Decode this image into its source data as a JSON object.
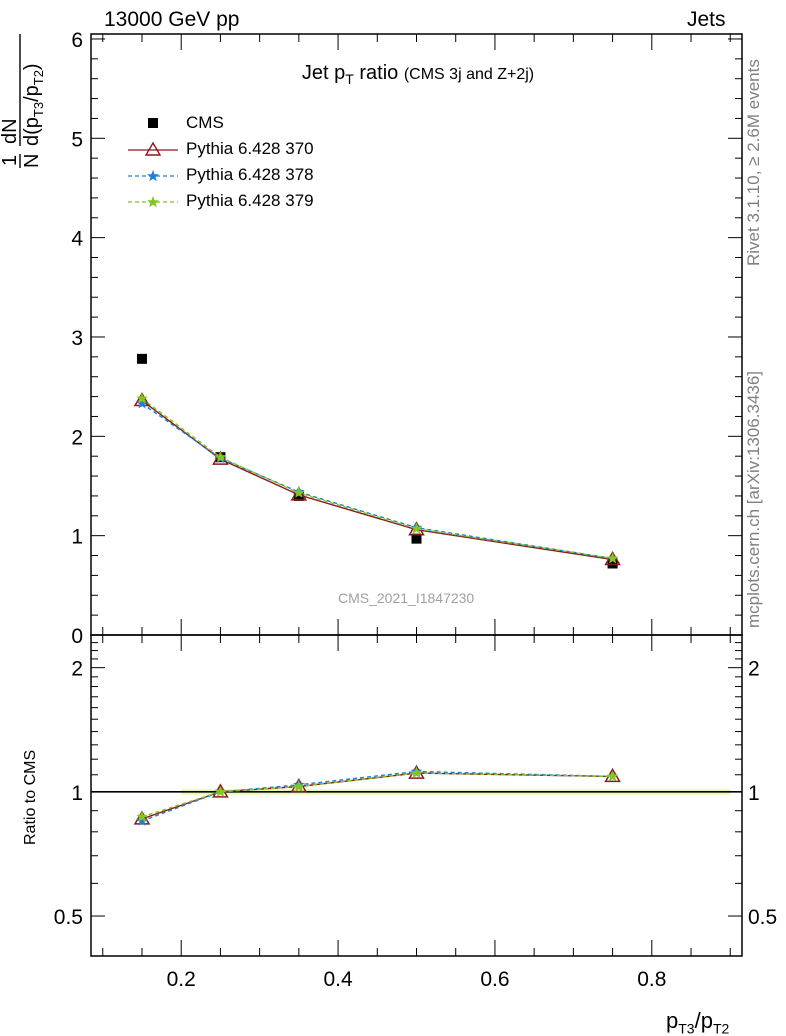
{
  "header": {
    "energy_label": "13000 GeV pp",
    "category_label": "Jets"
  },
  "side_labels": {
    "rivet": "Rivet 3.1.10, ≥ 2.6M events",
    "mcplots": "mcplots.cern.ch [arXiv:1306.3436]"
  },
  "title": {
    "main_pre": "Jet p",
    "main_sub": "T",
    "main_post": " ratio",
    "sub": "(CMS 3j and Z+2j)"
  },
  "legend": [
    {
      "label": "CMS",
      "color": "#000000",
      "marker": "square"
    },
    {
      "label": "Pythia 6.428 370",
      "color": "#8b1a1a",
      "marker": "triangle-open"
    },
    {
      "label": "Pythia 6.428 378",
      "color": "#1e7fd6",
      "marker": "star",
      "dashed": true
    },
    {
      "label": "Pythia 6.428 379",
      "color": "#7fc81e",
      "marker": "star",
      "dashed": true
    }
  ],
  "analysis_tag": "CMS_2021_I1847230",
  "axes": {
    "y_main_label": "1/N dN/d(pT3/pT2)",
    "y_ratio_label": "Ratio to CMS",
    "x_label_pre": "p",
    "x_label_sub1": "T3",
    "x_label_mid": "/p",
    "x_label_sub2": "T2"
  },
  "chart_data": [
    {
      "type": "scatter",
      "panel": "main",
      "x": [
        0.15,
        0.25,
        0.35,
        0.5,
        0.75
      ],
      "xlim": [
        0.085,
        0.915
      ],
      "ylim": [
        0,
        6.05
      ],
      "yticks": [
        0,
        1,
        2,
        3,
        4,
        5,
        6
      ],
      "ytick_labels": [
        "0",
        "1",
        "2",
        "3",
        "4",
        "5",
        "6"
      ],
      "series": [
        {
          "name": "CMS",
          "values": [
            2.78,
            1.79,
            1.4,
            0.97,
            0.72
          ]
        },
        {
          "name": "Pythia 6.428 370",
          "values": [
            2.36,
            1.77,
            1.41,
            1.06,
            0.76
          ]
        },
        {
          "name": "Pythia 6.428 378",
          "values": [
            2.33,
            1.78,
            1.44,
            1.08,
            0.77
          ]
        },
        {
          "name": "Pythia 6.428 379",
          "values": [
            2.38,
            1.79,
            1.43,
            1.07,
            0.77
          ]
        }
      ]
    },
    {
      "type": "line",
      "panel": "ratio",
      "x": [
        0.15,
        0.25,
        0.35,
        0.5,
        0.75
      ],
      "xlim": [
        0.085,
        0.915
      ],
      "xticks": [
        0.2,
        0.4,
        0.6,
        0.8
      ],
      "xtick_labels": [
        "0.2",
        "0.4",
        "0.6",
        "0.8"
      ],
      "ylim": [
        0.4,
        2.4
      ],
      "yscale": "log",
      "yticks": [
        0.5,
        1,
        2
      ],
      "ytick_labels": [
        "0.5",
        "1",
        "2"
      ],
      "series": [
        {
          "name": "Pythia 6.428 370",
          "values": [
            0.86,
            1.0,
            1.03,
            1.11,
            1.09
          ]
        },
        {
          "name": "Pythia 6.428 378",
          "values": [
            0.85,
            1.0,
            1.04,
            1.12,
            1.09
          ]
        },
        {
          "name": "Pythia 6.428 379",
          "values": [
            0.87,
            1.0,
            1.03,
            1.11,
            1.09
          ]
        }
      ]
    }
  ]
}
